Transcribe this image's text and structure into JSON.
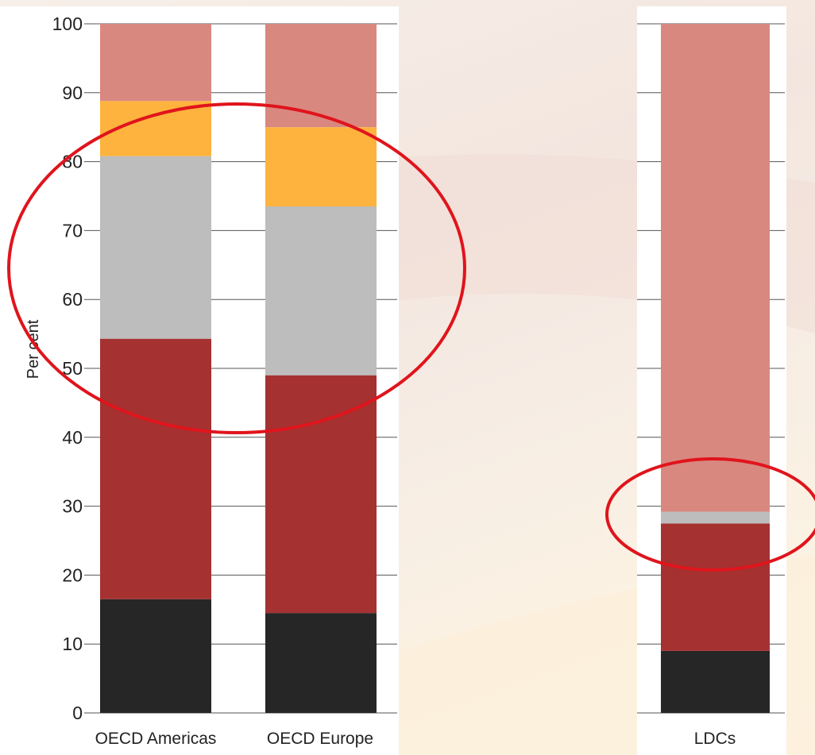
{
  "chart_data": [
    {
      "type": "bar",
      "stacked": true,
      "ylabel": "Per cent",
      "ylim": [
        0,
        100
      ],
      "yticks": [
        0,
        10,
        20,
        30,
        40,
        50,
        60,
        70,
        80,
        90,
        100
      ],
      "grid": true,
      "categories": [
        "OECD Americas",
        "OECD Europe"
      ],
      "series": [
        {
          "color": "#262626",
          "values": [
            16.5,
            14.5
          ]
        },
        {
          "color": "#a53131",
          "values": [
            37.8,
            34.5
          ]
        },
        {
          "color": "#bdbdbd",
          "values": [
            26.5,
            24.5
          ]
        },
        {
          "color": "#fdb33d",
          "values": [
            8,
            11.5
          ]
        },
        {
          "color": "#d98880",
          "values": [
            11.2,
            15
          ]
        }
      ]
    },
    {
      "type": "bar",
      "stacked": true,
      "ylim": [
        0,
        100
      ],
      "grid": true,
      "categories": [
        "LDCs"
      ],
      "series": [
        {
          "color": "#262626",
          "values": [
            9
          ]
        },
        {
          "color": "#a53131",
          "values": [
            18.5
          ]
        },
        {
          "color": "#bdbdbd",
          "values": [
            1.7
          ]
        },
        {
          "color": "#d98880",
          "values": [
            70.8
          ]
        }
      ]
    }
  ],
  "annotations": [
    {
      "shape": "ellipse",
      "color": "#e0141c",
      "around": "OECD Americas and OECD Europe bars, 50 to 90 per cent"
    },
    {
      "shape": "ellipse",
      "color": "#e0141c",
      "around": "LDCs bar, 20 to 35 per cent"
    }
  ]
}
